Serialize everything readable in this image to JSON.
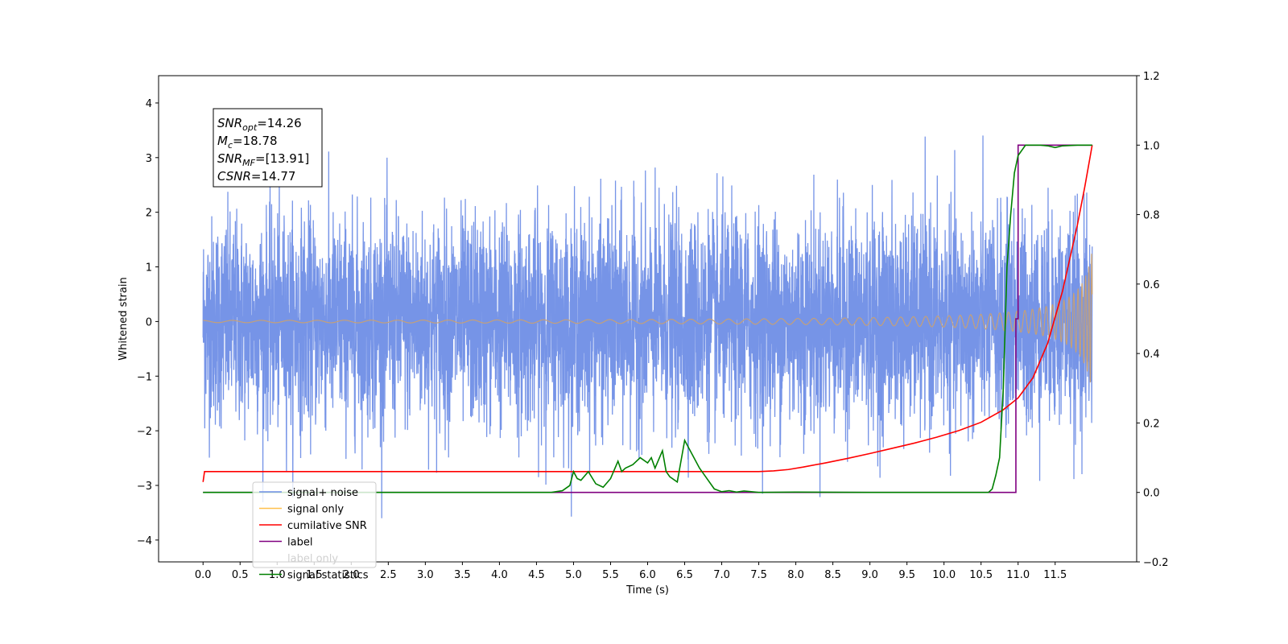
{
  "chart_data": {
    "type": "line",
    "xlabel": "Time (s)",
    "ylabel_left": "Whitened strain",
    "xlim": [
      -0.6,
      12.6
    ],
    "ylim_left": [
      -4.4,
      4.5
    ],
    "ylim_right": [
      -0.2,
      1.2
    ],
    "x_ticks": [
      "0.0",
      "0.5",
      "1.0",
      "1.5",
      "2.0",
      "2.5",
      "3.0",
      "3.5",
      "4.0",
      "4.5",
      "5.0",
      "5.5",
      "6.0",
      "6.5",
      "7.0",
      "7.5",
      "8.0",
      "8.5",
      "9.0",
      "9.5",
      "10.0",
      "10.5",
      "11.0",
      "11.5"
    ],
    "y_ticks_left": [
      "−4",
      "−3",
      "−2",
      "−1",
      "0",
      "1",
      "2",
      "3",
      "4"
    ],
    "y_ticks_right": [
      "−0.2",
      "0.0",
      "0.2",
      "0.4",
      "0.6",
      "0.8",
      "1.0",
      "1.2"
    ],
    "grid": false,
    "legend_position": "lower-left",
    "annotation": {
      "lines": [
        {
          "sym": "SNR",
          "sub": "opt",
          "value": "=14.26"
        },
        {
          "sym": "M",
          "sub": "c",
          "value": "=18.78"
        },
        {
          "sym": "SNR",
          "sub": "MF",
          "value": "=[13.91]"
        },
        {
          "sym": "CSNR",
          "sub": "",
          "value": "=14.77"
        }
      ]
    },
    "series": [
      {
        "name": "signal+ noise",
        "axis": "left",
        "color": "#6f8ee6",
        "description_values": {
          "x_range": [
            0.0,
            12.0
          ],
          "noise_std": 0.95,
          "peak_max": 4.12,
          "peak_min": -3.78
        }
      },
      {
        "name": "signal only",
        "axis": "left",
        "color": "#ffc04d",
        "chirp": {
          "x_start": 0.0,
          "x_end": 12.0,
          "amp_end": 1.3,
          "freq_start": 2.5,
          "freq_end": 48
        }
      },
      {
        "name": "cumilative SNR",
        "axis": "right",
        "color": "#ff0000",
        "x": [
          0.0,
          0.02,
          7.5,
          7.7,
          7.9,
          8.1,
          8.4,
          8.7,
          9.0,
          9.3,
          9.6,
          9.9,
          10.2,
          10.5,
          10.8,
          11.0,
          11.2,
          11.4,
          11.6,
          11.8,
          11.9,
          12.0
        ],
        "y": [
          0.03,
          0.06,
          0.06,
          0.062,
          0.066,
          0.073,
          0.085,
          0.098,
          0.112,
          0.127,
          0.142,
          0.159,
          0.178,
          0.202,
          0.238,
          0.272,
          0.33,
          0.43,
          0.58,
          0.77,
          0.88,
          1.0
        ]
      },
      {
        "name": "label",
        "axis": "right",
        "color": "#800080",
        "x": [
          0.0,
          10.97,
          10.97,
          11.0,
          11.0,
          12.0
        ],
        "y": [
          0.0,
          0.0,
          0.5,
          0.5,
          1.0,
          1.0
        ]
      },
      {
        "name": "label only",
        "axis": "right",
        "color": "#d0d0d0",
        "hidden": true,
        "x": [],
        "y": []
      },
      {
        "name": "signal statistics",
        "axis": "right",
        "color": "#008000",
        "x": [
          0.0,
          4.7,
          4.85,
          4.95,
          5.0,
          5.05,
          5.1,
          5.2,
          5.3,
          5.4,
          5.5,
          5.6,
          5.65,
          5.7,
          5.8,
          5.9,
          6.0,
          6.05,
          6.1,
          6.2,
          6.25,
          6.3,
          6.4,
          6.5,
          6.6,
          6.7,
          6.8,
          6.9,
          7.0,
          7.1,
          7.2,
          7.3,
          7.5,
          8.0,
          9.0,
          10.0,
          10.5,
          10.6,
          10.65,
          10.7,
          10.75,
          10.8,
          10.85,
          10.9,
          10.95,
          11.0,
          11.1,
          11.2,
          11.3,
          11.4,
          11.5,
          11.6,
          11.8,
          12.0
        ],
        "y": [
          0.0,
          0.0,
          0.005,
          0.02,
          0.06,
          0.04,
          0.035,
          0.06,
          0.025,
          0.015,
          0.04,
          0.09,
          0.06,
          0.07,
          0.08,
          0.1,
          0.085,
          0.1,
          0.07,
          0.12,
          0.06,
          0.045,
          0.03,
          0.15,
          0.11,
          0.07,
          0.04,
          0.01,
          0.002,
          0.005,
          0.001,
          0.004,
          0.0,
          0.001,
          0.0,
          0.0,
          0.0,
          0.0,
          0.01,
          0.05,
          0.1,
          0.3,
          0.65,
          0.8,
          0.92,
          0.97,
          1.0,
          1.0,
          1.0,
          0.998,
          0.993,
          0.998,
          1.0,
          1.0
        ]
      }
    ]
  }
}
